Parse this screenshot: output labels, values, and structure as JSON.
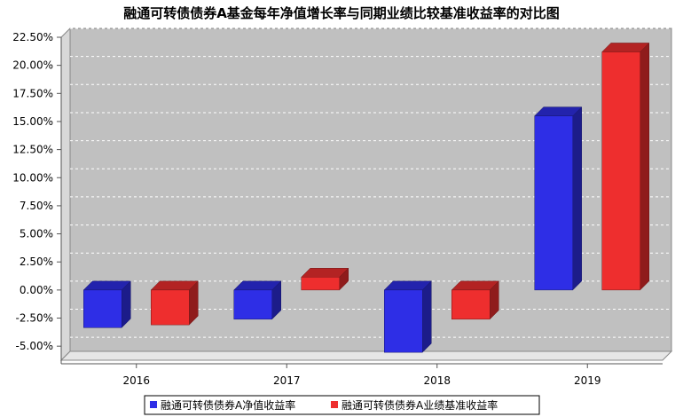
{
  "chart_data": {
    "type": "bar",
    "title": "融通可转债债券A基金每年净值增长率与同期业绩比较基准收益率的对比图",
    "categories": [
      "2016",
      "2017",
      "2018",
      "2019"
    ],
    "series": [
      {
        "name": "融通可转债债券A净值收益率",
        "color": "#2e2ee6",
        "values": [
          -3.35,
          -2.6,
          -5.55,
          15.5
        ]
      },
      {
        "name": "融通可转债债券A业绩基准收益率",
        "color": "#ee2e2e",
        "values": [
          -3.1,
          1.15,
          -2.6,
          21.2
        ]
      }
    ],
    "ylim": [
      -6.25,
      22.5
    ],
    "yticks": [
      "22.50%",
      "20.00%",
      "17.50%",
      "15.00%",
      "12.50%",
      "10.00%",
      "7.50%",
      "5.00%",
      "2.50%",
      "0.00%",
      "-2.50%",
      "-5.00%"
    ],
    "ytick_values": [
      22.5,
      20,
      17.5,
      15,
      12.5,
      10,
      7.5,
      5,
      2.5,
      0,
      -2.5,
      -5
    ],
    "grid": true,
    "legend_position": "bottom"
  }
}
